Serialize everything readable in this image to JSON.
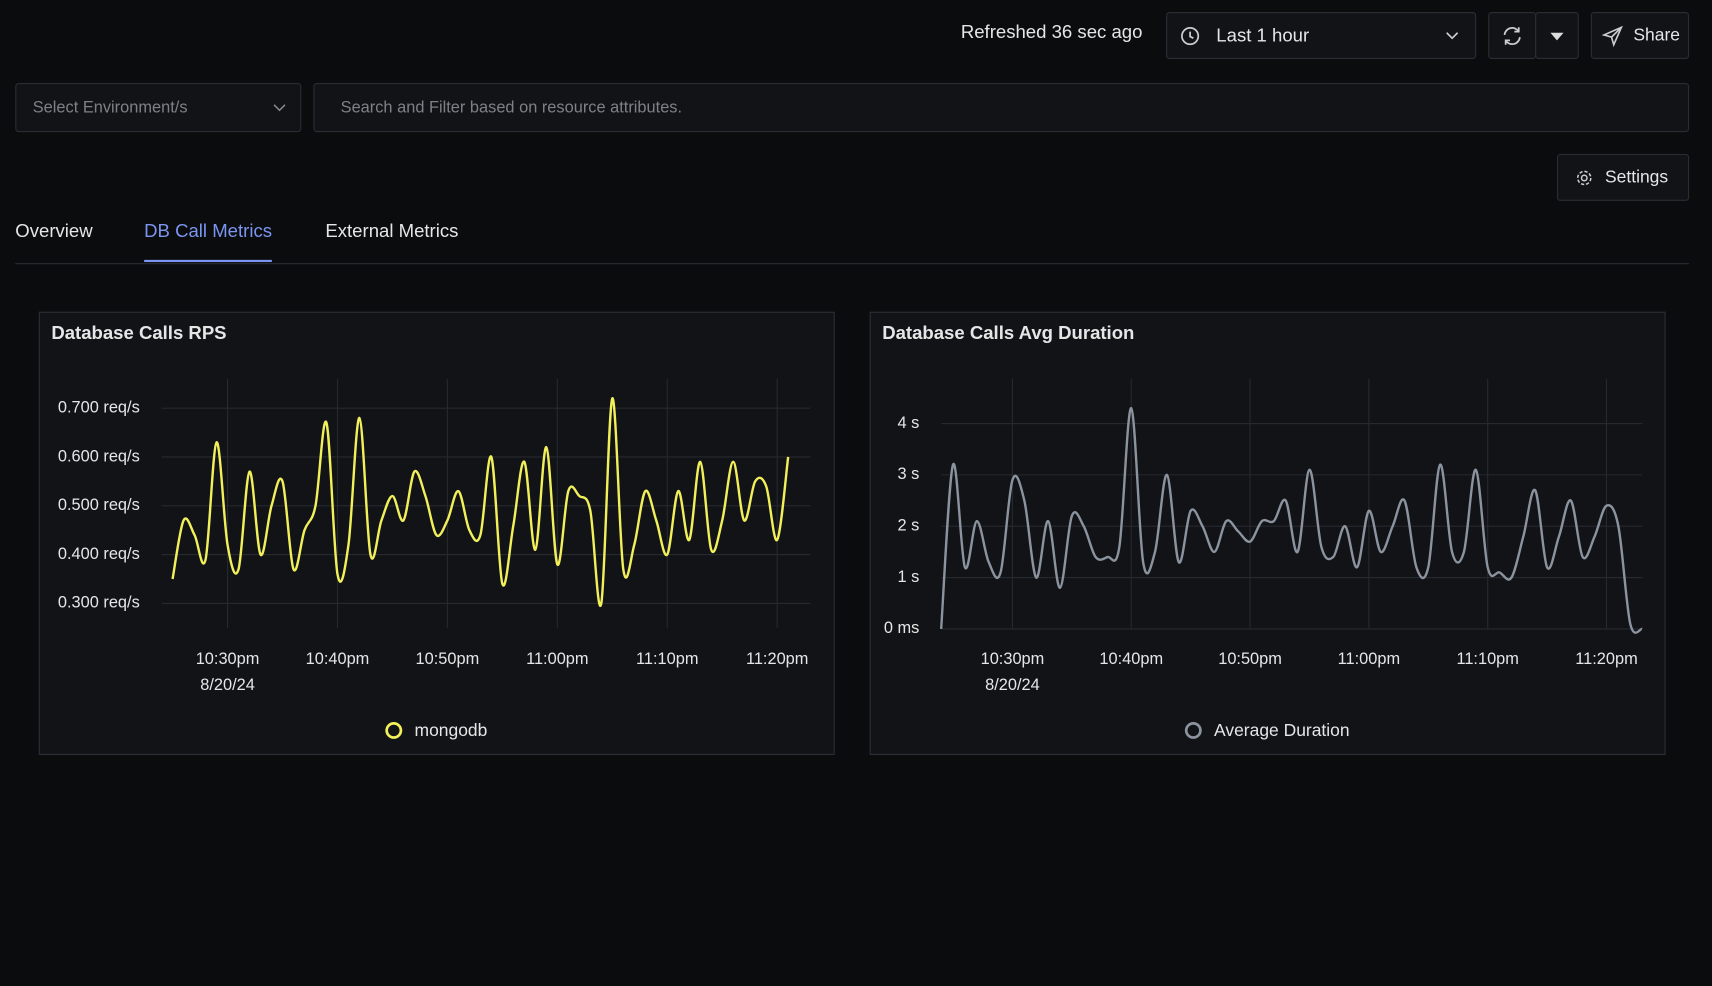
{
  "header": {
    "refreshed": "Refreshed 36 sec ago",
    "time_range": "Last 1 hour",
    "share": "Share"
  },
  "filters": {
    "environment_placeholder": "Select Environment/s",
    "search_placeholder": "Search and Filter based on resource attributes."
  },
  "settings": "Settings",
  "tabs": [
    "Overview",
    "DB Call Metrics",
    "External Metrics"
  ],
  "active_tab": 1,
  "chart_data": [
    {
      "type": "line",
      "title": "Database Calls RPS",
      "x": [
        "2024-08-20T22:25",
        "2024-08-20T22:26",
        "2024-08-20T22:27",
        "2024-08-20T22:28",
        "2024-08-20T22:29",
        "2024-08-20T22:30",
        "2024-08-20T22:31",
        "2024-08-20T22:32",
        "2024-08-20T22:33",
        "2024-08-20T22:34",
        "2024-08-20T22:35",
        "2024-08-20T22:36",
        "2024-08-20T22:37",
        "2024-08-20T22:38",
        "2024-08-20T22:39",
        "2024-08-20T22:40",
        "2024-08-20T22:41",
        "2024-08-20T22:42",
        "2024-08-20T22:43",
        "2024-08-20T22:44",
        "2024-08-20T22:45",
        "2024-08-20T22:46",
        "2024-08-20T22:47",
        "2024-08-20T22:48",
        "2024-08-20T22:49",
        "2024-08-20T22:50",
        "2024-08-20T22:51",
        "2024-08-20T22:52",
        "2024-08-20T22:53",
        "2024-08-20T22:54",
        "2024-08-20T22:55",
        "2024-08-20T22:56",
        "2024-08-20T22:57",
        "2024-08-20T22:58",
        "2024-08-20T22:59",
        "2024-08-20T23:00",
        "2024-08-20T23:01",
        "2024-08-20T23:02",
        "2024-08-20T23:03",
        "2024-08-20T23:04",
        "2024-08-20T23:05",
        "2024-08-20T23:06",
        "2024-08-20T23:07",
        "2024-08-20T23:08",
        "2024-08-20T23:09",
        "2024-08-20T23:10",
        "2024-08-20T23:11",
        "2024-08-20T23:12",
        "2024-08-20T23:13",
        "2024-08-20T23:14",
        "2024-08-20T23:15",
        "2024-08-20T23:16",
        "2024-08-20T23:17",
        "2024-08-20T23:18",
        "2024-08-20T23:19",
        "2024-08-20T23:20",
        "2024-08-20T23:21"
      ],
      "series": [
        {
          "name": "mongodb",
          "color": "#f2f05a",
          "values": [
            0.35,
            0.47,
            0.44,
            0.39,
            0.63,
            0.42,
            0.37,
            0.57,
            0.4,
            0.5,
            0.55,
            0.37,
            0.45,
            0.5,
            0.67,
            0.36,
            0.42,
            0.68,
            0.4,
            0.47,
            0.52,
            0.47,
            0.57,
            0.52,
            0.44,
            0.47,
            0.53,
            0.45,
            0.44,
            0.6,
            0.34,
            0.46,
            0.59,
            0.41,
            0.62,
            0.38,
            0.53,
            0.52,
            0.49,
            0.3,
            0.72,
            0.37,
            0.42,
            0.53,
            0.47,
            0.4,
            0.53,
            0.43,
            0.59,
            0.41,
            0.47,
            0.59,
            0.47,
            0.55,
            0.54,
            0.43,
            0.6
          ]
        }
      ],
      "xlim": [
        "2024-08-20T22:24",
        "2024-08-20T23:23"
      ],
      "xticks": [
        {
          "value": "2024-08-20T22:30",
          "label": "10:30pm"
        },
        {
          "value": "2024-08-20T22:40",
          "label": "10:40pm"
        },
        {
          "value": "2024-08-20T22:50",
          "label": "10:50pm"
        },
        {
          "value": "2024-08-20T23:00",
          "label": "11:00pm"
        },
        {
          "value": "2024-08-20T23:10",
          "label": "11:10pm"
        },
        {
          "value": "2024-08-20T23:20",
          "label": "11:20pm"
        }
      ],
      "xtick_date": "8/20/24",
      "ylim": [
        0.25,
        0.76
      ],
      "yticks": [
        {
          "value": 0.3,
          "label": "0.300 req/s"
        },
        {
          "value": 0.4,
          "label": "0.400 req/s"
        },
        {
          "value": 0.5,
          "label": "0.500 req/s"
        },
        {
          "value": 0.6,
          "label": "0.600 req/s"
        },
        {
          "value": 0.7,
          "label": "0.700 req/s"
        }
      ],
      "grid": true,
      "legend": "bottom"
    },
    {
      "type": "line",
      "title": "Database Calls Avg Duration",
      "x": [
        "2024-08-20T22:24",
        "2024-08-20T22:25",
        "2024-08-20T22:26",
        "2024-08-20T22:27",
        "2024-08-20T22:28",
        "2024-08-20T22:29",
        "2024-08-20T22:30",
        "2024-08-20T22:31",
        "2024-08-20T22:32",
        "2024-08-20T22:33",
        "2024-08-20T22:34",
        "2024-08-20T22:35",
        "2024-08-20T22:36",
        "2024-08-20T22:37",
        "2024-08-20T22:38",
        "2024-08-20T22:39",
        "2024-08-20T22:40",
        "2024-08-20T22:41",
        "2024-08-20T22:42",
        "2024-08-20T22:43",
        "2024-08-20T22:44",
        "2024-08-20T22:45",
        "2024-08-20T22:46",
        "2024-08-20T22:47",
        "2024-08-20T22:48",
        "2024-08-20T22:49",
        "2024-08-20T22:50",
        "2024-08-20T22:51",
        "2024-08-20T22:52",
        "2024-08-20T22:53",
        "2024-08-20T22:54",
        "2024-08-20T22:55",
        "2024-08-20T22:56",
        "2024-08-20T22:57",
        "2024-08-20T22:58",
        "2024-08-20T22:59",
        "2024-08-20T23:00",
        "2024-08-20T23:01",
        "2024-08-20T23:02",
        "2024-08-20T23:03",
        "2024-08-20T23:04",
        "2024-08-20T23:05",
        "2024-08-20T23:06",
        "2024-08-20T23:07",
        "2024-08-20T23:08",
        "2024-08-20T23:09",
        "2024-08-20T23:10",
        "2024-08-20T23:11",
        "2024-08-20T23:12",
        "2024-08-20T23:13",
        "2024-08-20T23:14",
        "2024-08-20T23:15",
        "2024-08-20T23:16",
        "2024-08-20T23:17",
        "2024-08-20T23:18",
        "2024-08-20T23:19",
        "2024-08-20T23:20",
        "2024-08-20T23:21",
        "2024-08-20T23:22",
        "2024-08-20T23:23"
      ],
      "series": [
        {
          "name": "Average Duration",
          "color": "#8a939e",
          "values": [
            0,
            3.2,
            1.2,
            2.1,
            1.3,
            1.1,
            2.9,
            2.5,
            1.0,
            2.1,
            0.8,
            2.2,
            2.0,
            1.4,
            1.4,
            1.6,
            4.3,
            1.3,
            1.5,
            3.0,
            1.3,
            2.3,
            2.0,
            1.5,
            2.1,
            1.9,
            1.7,
            2.1,
            2.1,
            2.5,
            1.5,
            3.1,
            1.6,
            1.4,
            2.0,
            1.2,
            2.3,
            1.5,
            2.0,
            2.5,
            1.2,
            1.2,
            3.2,
            1.5,
            1.5,
            3.1,
            1.2,
            1.1,
            1.0,
            1.8,
            2.7,
            1.2,
            1.8,
            2.5,
            1.4,
            1.8,
            2.4,
            2.0,
            0.1,
            0
          ]
        }
      ],
      "xlim": [
        "2024-08-20T22:24",
        "2024-08-20T23:23"
      ],
      "xticks": [
        {
          "value": "2024-08-20T22:30",
          "label": "10:30pm"
        },
        {
          "value": "2024-08-20T22:40",
          "label": "10:40pm"
        },
        {
          "value": "2024-08-20T22:50",
          "label": "10:50pm"
        },
        {
          "value": "2024-08-20T23:00",
          "label": "11:00pm"
        },
        {
          "value": "2024-08-20T23:10",
          "label": "11:10pm"
        },
        {
          "value": "2024-08-20T23:20",
          "label": "11:20pm"
        }
      ],
      "xtick_date": "8/20/24",
      "ylim": [
        0,
        4.87
      ],
      "yticks": [
        {
          "value": 0,
          "label": "0 ms"
        },
        {
          "value": 1,
          "label": "1 s"
        },
        {
          "value": 2,
          "label": "2 s"
        },
        {
          "value": 3,
          "label": "3 s"
        },
        {
          "value": 4,
          "label": "4 s"
        }
      ],
      "grid": true,
      "legend": "bottom"
    }
  ]
}
